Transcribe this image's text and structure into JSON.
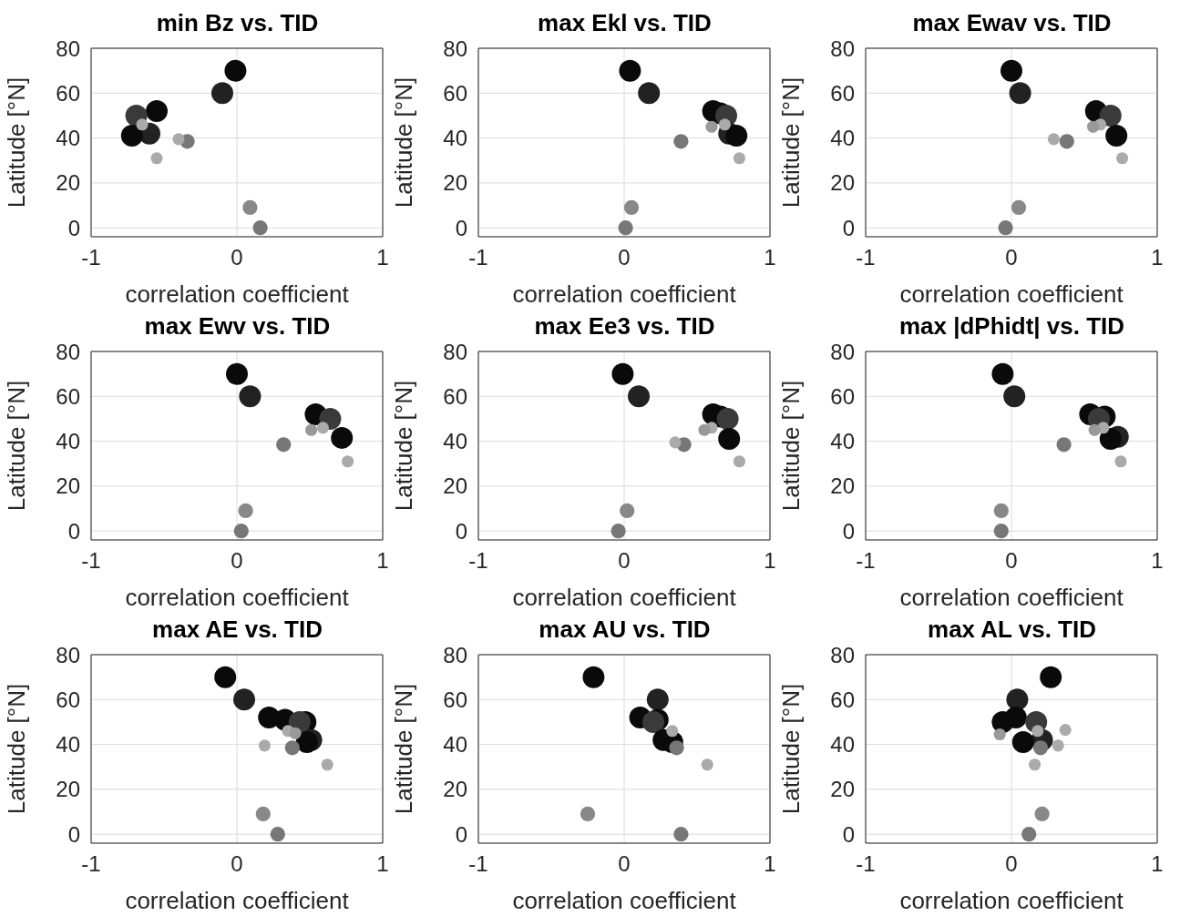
{
  "chart_data": [
    {
      "type": "bubble",
      "title": "min Bz vs. TID",
      "xlabel": "correlation coefficient",
      "ylabel": "Latitude [°N]",
      "xlim": [
        -1,
        1
      ],
      "xticks": [
        -1,
        0,
        1
      ],
      "ylim": [
        -4,
        80
      ],
      "yticks": [
        0,
        20,
        40,
        60,
        80
      ],
      "grid": true,
      "x": [
        -0.01,
        -0.1,
        -0.55,
        -0.69,
        -0.6,
        -0.72,
        -0.34,
        0.16,
        0.09,
        -0.65,
        -0.4,
        -0.55
      ],
      "values": [
        70,
        60,
        52,
        50,
        42,
        41,
        38.5,
        0,
        9,
        46,
        39.5,
        31
      ],
      "sizes": [
        1,
        1,
        1,
        1,
        1,
        1,
        0.46,
        0.46,
        0.46,
        0.3,
        0.3,
        0.3
      ],
      "colors": [
        "#0a0a0a",
        "#222222",
        "#0a0a0a",
        "#3a3a3a",
        "#222222",
        "#0a0a0a",
        "#777777",
        "#777777",
        "#888888",
        "#aaaaaa",
        "#aaaaaa",
        "#aaaaaa"
      ]
    },
    {
      "type": "bubble",
      "title": "max Ekl vs. TID",
      "xlabel": "correlation coefficient",
      "ylabel": "Latitude [°N]",
      "xlim": [
        -1,
        1
      ],
      "xticks": [
        -1,
        0,
        1
      ],
      "ylim": [
        -4,
        80
      ],
      "yticks": [
        0,
        20,
        40,
        60,
        80
      ],
      "grid": true,
      "x": [
        0.04,
        0.17,
        0.61,
        0.66,
        0.7,
        0.72,
        0.77,
        0.39,
        0.01,
        0.05,
        0.69,
        0.6,
        0.79
      ],
      "values": [
        70,
        60,
        52,
        51,
        50,
        42,
        41,
        38.5,
        0,
        9,
        46,
        45,
        31
      ],
      "sizes": [
        1,
        1,
        1,
        1,
        1,
        1,
        1,
        0.46,
        0.46,
        0.46,
        0.3,
        0.3,
        0.3
      ],
      "colors": [
        "#0a0a0a",
        "#222222",
        "#0a0a0a",
        "#0a0a0a",
        "#3a3a3a",
        "#222222",
        "#0a0a0a",
        "#777777",
        "#777777",
        "#888888",
        "#aaaaaa",
        "#999999",
        "#aaaaaa"
      ]
    },
    {
      "type": "bubble",
      "title": "max Ewav vs. TID",
      "xlabel": "correlation coefficient",
      "ylabel": "Latitude [°N]",
      "xlim": [
        -1,
        1
      ],
      "xticks": [
        -1,
        0,
        1
      ],
      "ylim": [
        -4,
        80
      ],
      "yticks": [
        0,
        20,
        40,
        60,
        80
      ],
      "grid": true,
      "x": [
        0.0,
        0.06,
        0.58,
        0.68,
        0.72,
        0.38,
        -0.04,
        0.05,
        0.61,
        0.56,
        0.29,
        0.76
      ],
      "values": [
        70,
        60,
        52,
        50,
        41,
        38.5,
        0,
        9,
        46,
        45,
        39.5,
        31
      ],
      "sizes": [
        1,
        1,
        1,
        1,
        1,
        0.46,
        0.46,
        0.46,
        0.3,
        0.3,
        0.3,
        0.3
      ],
      "colors": [
        "#0a0a0a",
        "#222222",
        "#0a0a0a",
        "#3a3a3a",
        "#0a0a0a",
        "#777777",
        "#777777",
        "#888888",
        "#aaaaaa",
        "#999999",
        "#aaaaaa",
        "#aaaaaa"
      ]
    },
    {
      "type": "bubble",
      "title": "max Ewv vs. TID",
      "xlabel": "correlation coefficient",
      "ylabel": "Latitude [°N]",
      "xlim": [
        -1,
        1
      ],
      "xticks": [
        -1,
        0,
        1
      ],
      "ylim": [
        -4,
        80
      ],
      "yticks": [
        0,
        20,
        40,
        60,
        80
      ],
      "grid": true,
      "x": [
        0.0,
        0.09,
        0.54,
        0.64,
        0.72,
        0.32,
        0.03,
        0.06,
        0.59,
        0.51,
        0.76
      ],
      "values": [
        70,
        60,
        52,
        50,
        41.5,
        38.5,
        0,
        9,
        46,
        45,
        31
      ],
      "sizes": [
        1,
        1,
        1,
        1,
        1,
        0.46,
        0.46,
        0.46,
        0.3,
        0.3,
        0.3
      ],
      "colors": [
        "#0a0a0a",
        "#222222",
        "#0a0a0a",
        "#3a3a3a",
        "#0a0a0a",
        "#777777",
        "#777777",
        "#888888",
        "#aaaaaa",
        "#999999",
        "#aaaaaa"
      ]
    },
    {
      "type": "bubble",
      "title": "max Ee3 vs. TID",
      "xlabel": "correlation coefficient",
      "ylabel": "Latitude [°N]",
      "xlim": [
        -1,
        1
      ],
      "xticks": [
        -1,
        0,
        1
      ],
      "ylim": [
        -4,
        80
      ],
      "yticks": [
        0,
        20,
        40,
        60,
        80
      ],
      "grid": true,
      "x": [
        -0.01,
        0.1,
        0.61,
        0.66,
        0.71,
        0.72,
        0.41,
        -0.04,
        0.02,
        0.6,
        0.55,
        0.35,
        0.79
      ],
      "values": [
        70,
        60,
        52,
        51,
        50,
        41,
        38.5,
        0,
        9,
        46,
        45,
        39.5,
        31
      ],
      "sizes": [
        1,
        1,
        1,
        1,
        1,
        1,
        0.46,
        0.46,
        0.46,
        0.3,
        0.3,
        0.3,
        0.3
      ],
      "colors": [
        "#0a0a0a",
        "#222222",
        "#0a0a0a",
        "#0a0a0a",
        "#3a3a3a",
        "#0a0a0a",
        "#777777",
        "#777777",
        "#888888",
        "#aaaaaa",
        "#999999",
        "#aaaaaa",
        "#aaaaaa"
      ]
    },
    {
      "type": "bubble",
      "title": "max |dPhidt| vs. TID",
      "xlabel": "correlation coefficient",
      "ylabel": "Latitude [°N]",
      "xlim": [
        -1,
        1
      ],
      "xticks": [
        -1,
        0,
        1
      ],
      "ylim": [
        -4,
        80
      ],
      "yticks": [
        0,
        20,
        40,
        60,
        80
      ],
      "grid": true,
      "x": [
        -0.06,
        0.02,
        0.54,
        0.64,
        0.6,
        0.73,
        0.68,
        0.36,
        -0.07,
        -0.07,
        0.63,
        0.57,
        0.75
      ],
      "values": [
        70,
        60,
        52,
        51,
        50,
        42,
        41,
        38.5,
        0,
        9,
        46,
        45,
        31
      ],
      "sizes": [
        1,
        1,
        1,
        1,
        1,
        1,
        1,
        0.46,
        0.46,
        0.46,
        0.3,
        0.3,
        0.3
      ],
      "colors": [
        "#0a0a0a",
        "#222222",
        "#0a0a0a",
        "#0a0a0a",
        "#3a3a3a",
        "#222222",
        "#0a0a0a",
        "#777777",
        "#777777",
        "#888888",
        "#aaaaaa",
        "#999999",
        "#aaaaaa"
      ]
    },
    {
      "type": "bubble",
      "title": "max AE vs. TID",
      "xlabel": "correlation coefficient",
      "ylabel": "Latitude [°N]",
      "xlim": [
        -1,
        1
      ],
      "xticks": [
        -1,
        0,
        1
      ],
      "ylim": [
        -4,
        80
      ],
      "yticks": [
        0,
        20,
        40,
        60,
        80
      ],
      "grid": true,
      "x": [
        -0.08,
        0.05,
        0.22,
        0.33,
        0.47,
        0.43,
        0.51,
        0.48,
        0.38,
        0.28,
        0.18,
        0.35,
        0.4,
        0.19,
        0.62
      ],
      "values": [
        70,
        60,
        52,
        51,
        50,
        50,
        42,
        41,
        38.5,
        0,
        9,
        46,
        45,
        39.5,
        31
      ],
      "sizes": [
        1,
        1,
        1,
        1,
        1,
        1,
        1,
        1,
        0.46,
        0.46,
        0.46,
        0.3,
        0.3,
        0.3,
        0.3
      ],
      "colors": [
        "#0a0a0a",
        "#222222",
        "#0a0a0a",
        "#0a0a0a",
        "#0a0a0a",
        "#3a3a3a",
        "#222222",
        "#0a0a0a",
        "#777777",
        "#777777",
        "#888888",
        "#aaaaaa",
        "#999999",
        "#aaaaaa",
        "#aaaaaa"
      ]
    },
    {
      "type": "bubble",
      "title": "max AU vs. TID",
      "xlabel": "correlation coefficient",
      "ylabel": "Latitude [°N]",
      "xlim": [
        -1,
        1
      ],
      "xticks": [
        -1,
        0,
        1
      ],
      "ylim": [
        -4,
        80
      ],
      "yticks": [
        0,
        20,
        40,
        60,
        80
      ],
      "grid": true,
      "x": [
        -0.21,
        0.23,
        0.11,
        0.23,
        0.2,
        0.27,
        0.33,
        0.36,
        0.39,
        -0.25,
        0.33,
        0.57
      ],
      "values": [
        70,
        60,
        52,
        51,
        50,
        42,
        41,
        38.5,
        0,
        9,
        46,
        31
      ],
      "sizes": [
        1,
        1,
        1,
        1,
        1,
        1,
        1,
        0.46,
        0.46,
        0.46,
        0.3,
        0.3
      ],
      "colors": [
        "#0a0a0a",
        "#222222",
        "#0a0a0a",
        "#0a0a0a",
        "#3a3a3a",
        "#0a0a0a",
        "#0a0a0a",
        "#777777",
        "#777777",
        "#888888",
        "#aaaaaa",
        "#aaaaaa"
      ]
    },
    {
      "type": "bubble",
      "title": "max AL vs. TID",
      "xlabel": "correlation coefficient",
      "ylabel": "Latitude [°N]",
      "xlim": [
        -1,
        1
      ],
      "xticks": [
        -1,
        0,
        1
      ],
      "ylim": [
        -4,
        80
      ],
      "yticks": [
        0,
        20,
        40,
        60,
        80
      ],
      "grid": true,
      "x": [
        0.27,
        0.04,
        0.03,
        -0.06,
        0.17,
        0.21,
        0.08,
        0.2,
        0.12,
        0.21,
        0.18,
        -0.08,
        0.32,
        0.16,
        0.37
      ],
      "values": [
        70,
        60,
        52,
        50,
        50,
        42,
        41,
        38.5,
        0,
        9,
        46,
        44.5,
        39.5,
        31,
        46.5
      ],
      "sizes": [
        1,
        1,
        1,
        1,
        1,
        1,
        1,
        0.46,
        0.46,
        0.46,
        0.3,
        0.3,
        0.3,
        0.3,
        0.3
      ],
      "colors": [
        "#0a0a0a",
        "#222222",
        "#0a0a0a",
        "#0a0a0a",
        "#3a3a3a",
        "#222222",
        "#0a0a0a",
        "#777777",
        "#777777",
        "#888888",
        "#aaaaaa",
        "#999999",
        "#aaaaaa",
        "#aaaaaa",
        "#aaaaaa"
      ]
    }
  ]
}
